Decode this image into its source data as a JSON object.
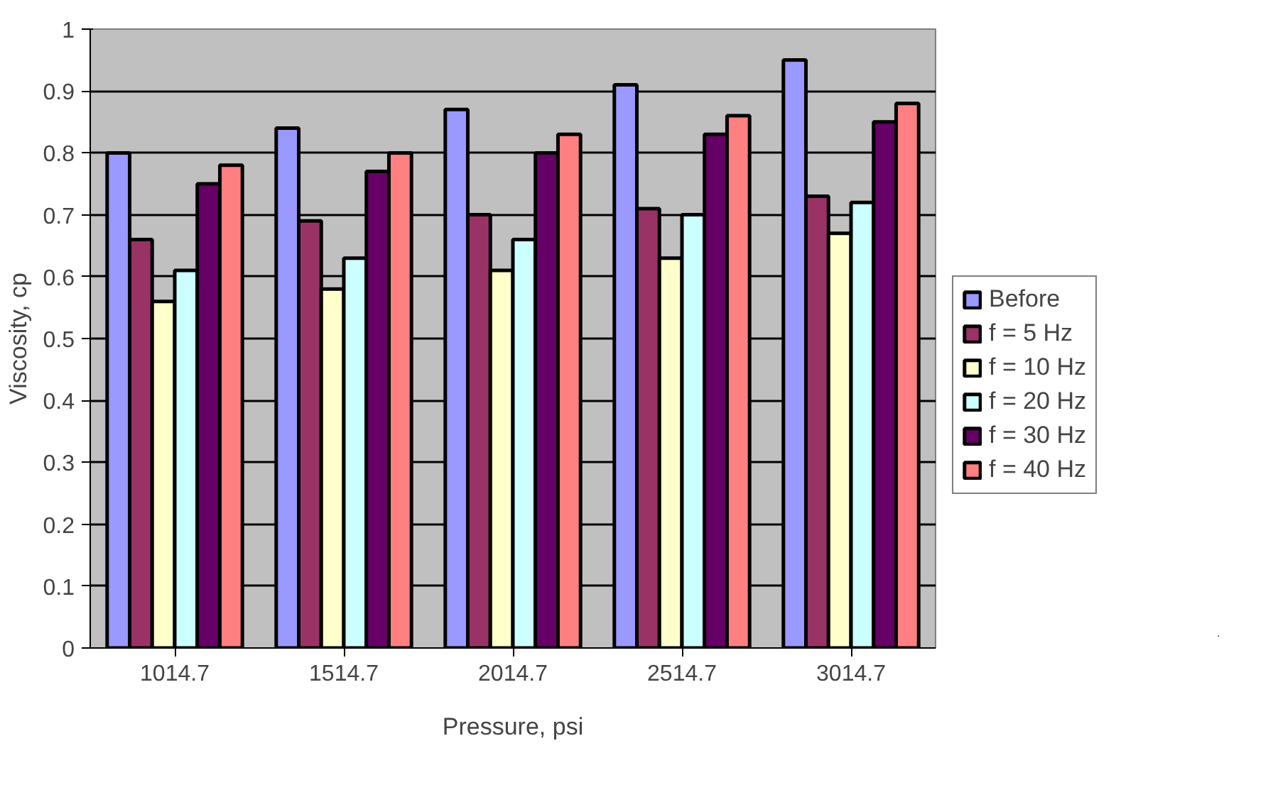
{
  "chart_data": {
    "type": "bar",
    "xlabel": "Pressure, psi",
    "ylabel": "Viscosity, cp",
    "categories": [
      "1014.7",
      "1514.7",
      "2014.7",
      "2514.7",
      "3014.7"
    ],
    "series": [
      {
        "name": "Before",
        "color": "#9999ff",
        "values": [
          0.8,
          0.84,
          0.87,
          0.91,
          0.95
        ]
      },
      {
        "name": "f = 5 Hz",
        "color": "#993366",
        "values": [
          0.66,
          0.69,
          0.7,
          0.71,
          0.73
        ]
      },
      {
        "name": "f = 10 Hz",
        "color": "#ffffcc",
        "values": [
          0.56,
          0.58,
          0.61,
          0.63,
          0.67
        ]
      },
      {
        "name": "f = 20 Hz",
        "color": "#ccffff",
        "values": [
          0.61,
          0.63,
          0.66,
          0.7,
          0.72
        ]
      },
      {
        "name": "f = 30 Hz",
        "color": "#660066",
        "values": [
          0.75,
          0.77,
          0.8,
          0.83,
          0.85
        ]
      },
      {
        "name": "f = 40 Hz",
        "color": "#ff8080",
        "values": [
          0.78,
          0.8,
          0.83,
          0.86,
          0.88
        ]
      }
    ],
    "ylim": [
      0,
      1
    ],
    "yticks": [
      0,
      0.1,
      0.2,
      0.3,
      0.4,
      0.5,
      0.6,
      0.7,
      0.8,
      0.9,
      {
        "value": 1,
        "label": "1"
      }
    ],
    "grid": "y",
    "legend": "right"
  }
}
